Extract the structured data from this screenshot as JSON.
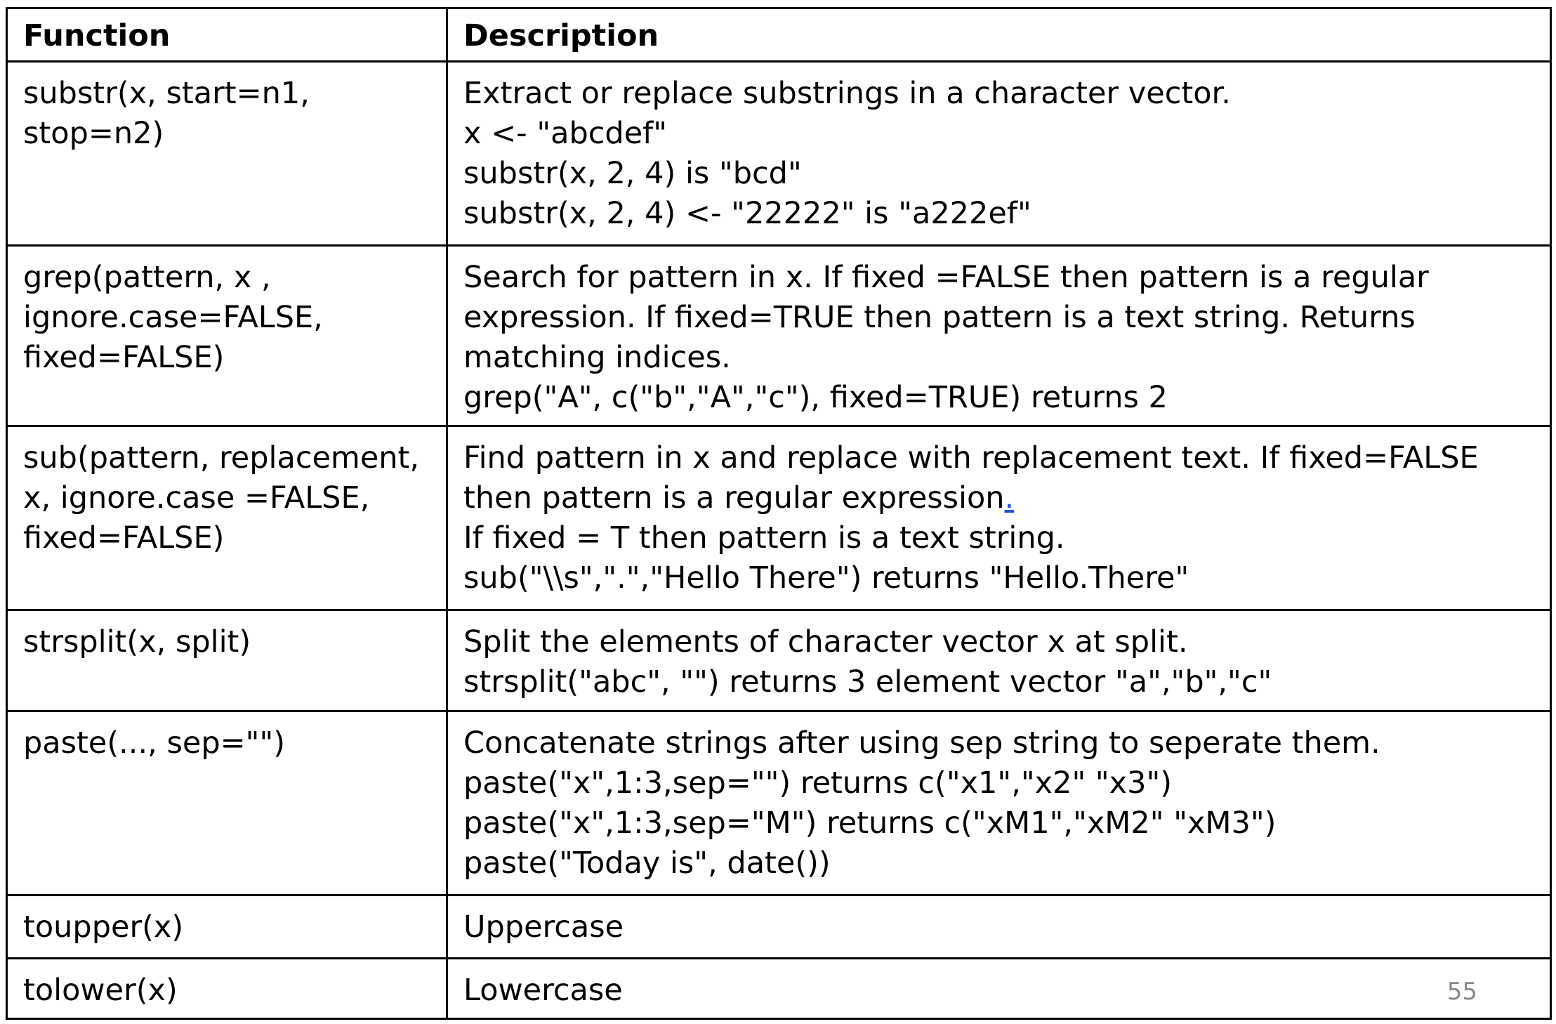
{
  "table": {
    "headers": {
      "function": "Function",
      "description": "Description"
    },
    "rows": [
      {
        "function_lines": [
          "substr(x, start=n1,",
          "stop=n2)"
        ],
        "description_lines": [
          "Extract or replace substrings in a character vector.",
          "x <- \"abcdef\"",
          "substr(x, 2, 4) is \"bcd\"",
          "substr(x, 2, 4) <- \"22222\" is \"a222ef\""
        ]
      },
      {
        "function_lines": [
          "grep(pattern, x ,",
          "ignore.case=FALSE,",
          "fixed=FALSE)"
        ],
        "description_lines": [
          "Search for pattern in x. If fixed =FALSE then pattern is a regular",
          "expression. If fixed=TRUE then pattern is a text string. Returns",
          "matching indices.",
          "grep(\"A\", c(\"b\",\"A\",\"c\"), fixed=TRUE) returns 2"
        ]
      },
      {
        "function_lines": [
          "sub(pattern, replacement,",
          "x, ignore.case =FALSE,",
          "fixed=FALSE)"
        ],
        "description_lines": [
          "Find pattern in x and replace with replacement text. If fixed=FALSE",
          "then pattern is a regular expression",
          "If fixed = T then pattern is a text string.",
          "sub(\"\\\\s\",\".\",\"Hello There\") returns \"Hello.There\""
        ],
        "link_text": "."
      },
      {
        "function_lines": [
          "strsplit(x, split)"
        ],
        "description_lines": [
          "Split the elements of character vector x at split.",
          "strsplit(\"abc\", \"\") returns 3 element vector \"a\",\"b\",\"c\""
        ]
      },
      {
        "function_lines": [
          "paste(..., sep=\"\")"
        ],
        "description_lines": [
          "Concatenate strings after using sep string to seperate them.",
          "paste(\"x\",1:3,sep=\"\") returns c(\"x1\",\"x2\" \"x3\")",
          "paste(\"x\",1:3,sep=\"M\") returns c(\"xM1\",\"xM2\" \"xM3\")",
          "paste(\"Today is\", date())"
        ]
      },
      {
        "function_lines": [
          "toupper(x)"
        ],
        "description_lines": [
          "Uppercase"
        ]
      },
      {
        "function_lines": [
          "tolower(x)"
        ],
        "description_lines": [
          "Lowercase"
        ]
      }
    ]
  },
  "page_number": "55",
  "colors": {
    "border": "#000000",
    "link": "#1f4fd8",
    "page_number": "#888888"
  }
}
